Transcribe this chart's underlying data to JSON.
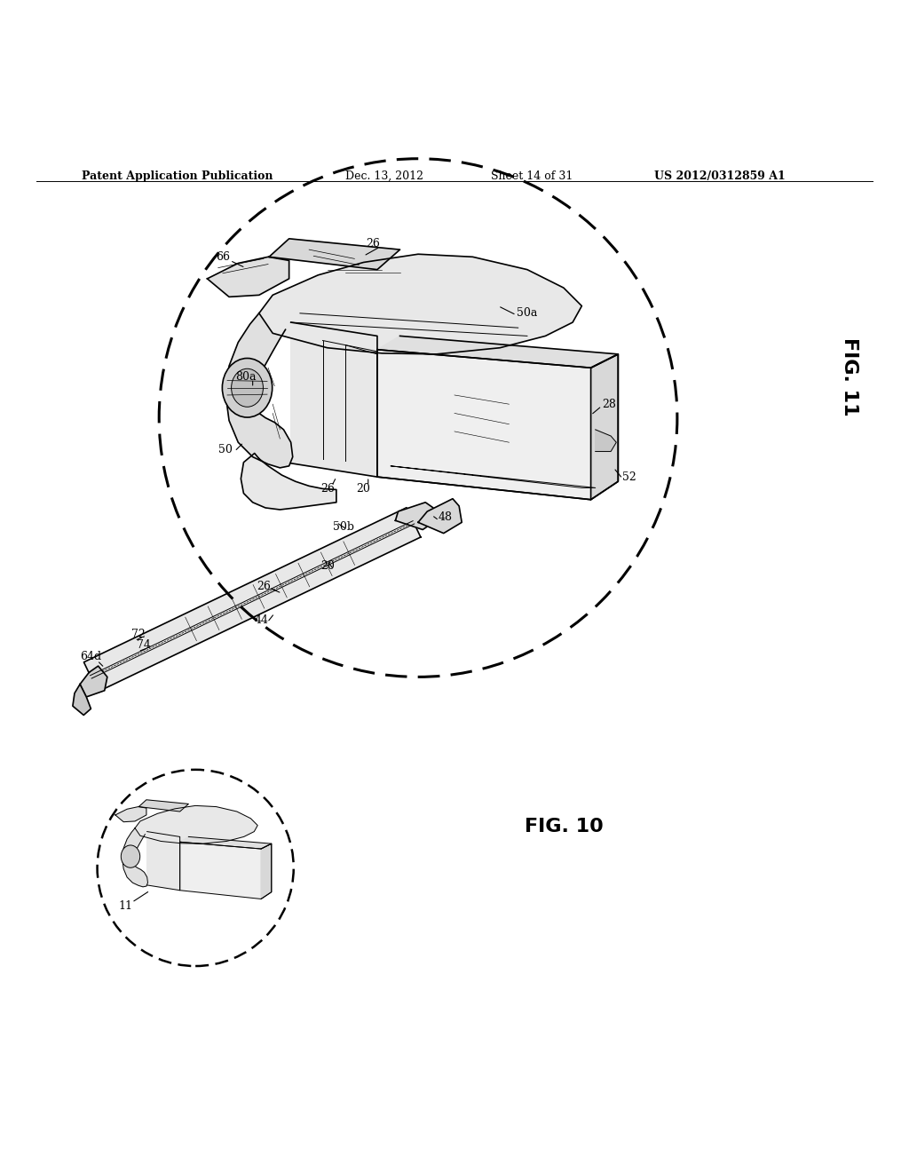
{
  "background_color": "#ffffff",
  "header_text": "Patent Application Publication",
  "header_date": "Dec. 13, 2012",
  "header_sheet": "Sheet 14 of 31",
  "header_patent": "US 2012/0312859 A1",
  "fig11_label": "FIG. 11",
  "fig10_label": "FIG. 10",
  "line_color": "#000000",
  "label_fontsize": 9,
  "fig_label_fontsize": 16,
  "header_fontsize": 9
}
